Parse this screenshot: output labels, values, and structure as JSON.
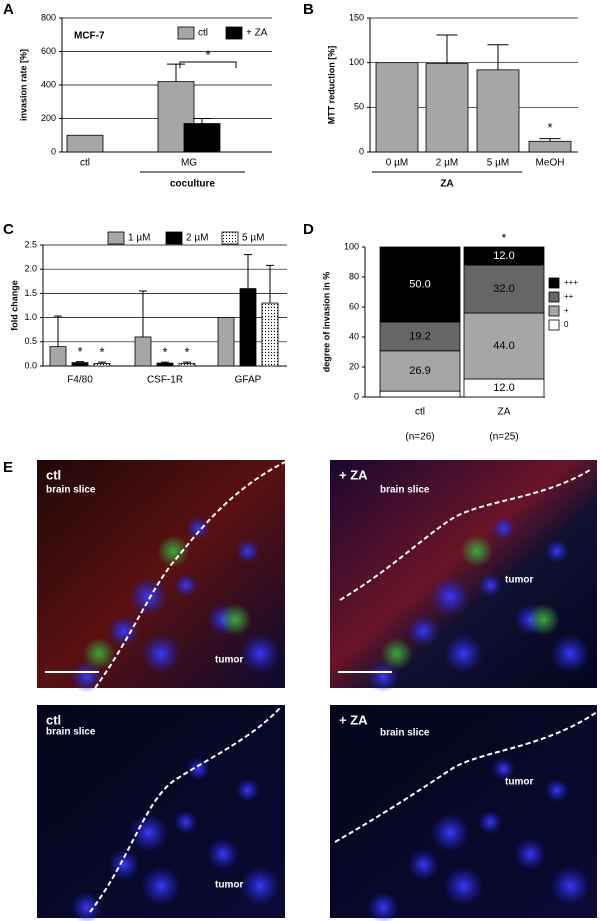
{
  "chart_data": [
    {
      "type": "bar",
      "panel": "A",
      "annotation": "MCF-7",
      "significance": "*",
      "categories": [
        "ctl",
        "MG"
      ],
      "group_label": "coculture",
      "ylabel": "invasion rate [%]",
      "ylim": [
        0,
        800
      ],
      "yticks": [
        0,
        200,
        400,
        600,
        800
      ],
      "grid": true,
      "legend": "top-right",
      "series": [
        {
          "name": "ctl",
          "color": "#a6a6a6",
          "values": [
            100,
            420
          ],
          "errors": [
            null,
            105
          ]
        },
        {
          "name": "+ ZA",
          "color": "#000000",
          "values": [
            null,
            170
          ],
          "errors": [
            null,
            30
          ]
        }
      ]
    },
    {
      "type": "bar",
      "panel": "B",
      "significance": "*",
      "categories": [
        "0 µM",
        "2 µM",
        "5 µM",
        "MeOH"
      ],
      "group_label": "ZA",
      "ylabel": "MTT reduction [%]",
      "ylim": [
        0,
        150
      ],
      "yticks": [
        0,
        50,
        100,
        150
      ],
      "grid": true,
      "color": "#a6a6a6",
      "values": [
        100,
        99,
        92,
        12
      ],
      "errors": [
        null,
        32,
        28,
        3
      ]
    },
    {
      "type": "bar",
      "panel": "C",
      "annotations": [
        "*",
        "*",
        "*",
        "*"
      ],
      "categories": [
        "F4/80",
        "CSF-1R",
        "GFAP"
      ],
      "ylabel": "fold change",
      "ylim": [
        0,
        2.5
      ],
      "yticks": [
        {
          "value": 0,
          "label": "0.0"
        },
        0.5,
        {
          "value": 1,
          "label": "1.0"
        },
        1.5,
        {
          "value": 2,
          "label": "2.0"
        },
        2.5
      ],
      "grid": true,
      "legend": "top",
      "series": [
        {
          "name": "1 µM",
          "color": "#a6a6a6",
          "values": [
            0.4,
            0.6,
            1.0
          ],
          "errors": [
            0.63,
            0.95,
            null
          ]
        },
        {
          "name": "2 µM",
          "color": "#000000",
          "values": [
            0.07,
            0.06,
            1.6
          ],
          "errors": [
            0.02,
            0.02,
            0.7
          ]
        },
        {
          "name": "5 µM",
          "color": "#ffffff",
          "pattern": "dots",
          "values": [
            0.05,
            0.05,
            1.3
          ],
          "errors": [
            0.03,
            0.03,
            0.78
          ]
        }
      ]
    },
    {
      "type": "stacked_bar",
      "panel": "D",
      "significance": "*",
      "categories": [
        "ctl",
        "ZA"
      ],
      "category_notes": [
        "(n=26)",
        "(n=25)"
      ],
      "ylabel": "degree of invasion in %",
      "ylim": [
        0,
        100
      ],
      "yticks": [
        0,
        20,
        40,
        60,
        80,
        100
      ],
      "grid": false,
      "legend": "right",
      "series": [
        {
          "name": "0",
          "color": "#ffffff",
          "values": [
            3.9,
            12.0
          ],
          "value_labels": [
            null,
            "12.0"
          ]
        },
        {
          "name": "+",
          "color": "#a6a6a6",
          "values": [
            26.9,
            44.0
          ],
          "value_labels": [
            "26.9",
            "44.0"
          ]
        },
        {
          "name": "++",
          "color": "#666666",
          "values": [
            19.2,
            32.0
          ],
          "value_labels": [
            "19.2",
            "32.0"
          ]
        },
        {
          "name": "+++",
          "color": "#000000",
          "values": [
            50.0,
            12.0
          ],
          "value_labels": [
            "50.0",
            "12.0"
          ]
        }
      ]
    }
  ],
  "micrographs": {
    "panel": "E",
    "images": [
      {
        "condition": "ctl",
        "regions": [
          "brain slice",
          "tumor"
        ]
      },
      {
        "condition": "+ ZA",
        "regions": [
          "brain slice",
          "tumor"
        ]
      },
      {
        "condition": "ctl",
        "regions": [
          "brain slice",
          "tumor"
        ]
      },
      {
        "condition": "+ ZA",
        "regions": [
          "brain slice",
          "tumor"
        ]
      }
    ]
  }
}
